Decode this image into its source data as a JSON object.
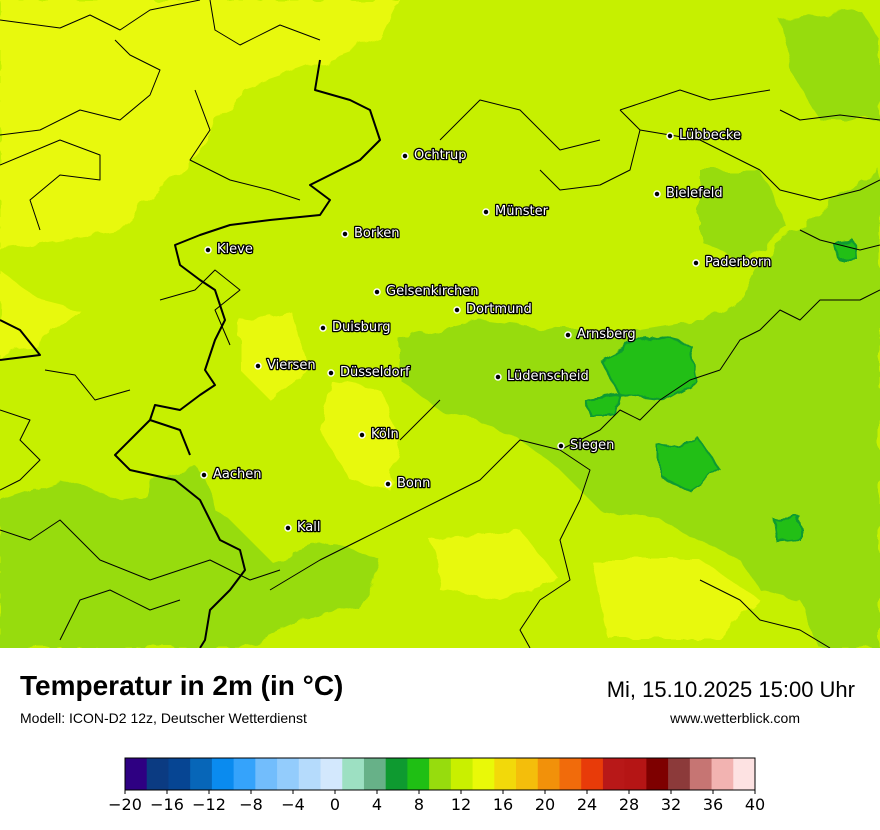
{
  "title": "Temperatur in 2m (in °C)",
  "model": "Modell: ICON-D2 12z, Deutscher Wetterdienst",
  "datetime": "Mi, 15.10.2025 15:00 Uhr",
  "website": "www.wetterblick.com",
  "cities": [
    {
      "name": "Ochtrup"
    },
    {
      "name": "Lübbecke"
    },
    {
      "name": "Bielefeld"
    },
    {
      "name": "Münster"
    },
    {
      "name": "Borken"
    },
    {
      "name": "Kleve"
    },
    {
      "name": "Paderborn"
    },
    {
      "name": "Gelsenkirchen"
    },
    {
      "name": "Dortmund"
    },
    {
      "name": "Duisburg"
    },
    {
      "name": "Arnsberg"
    },
    {
      "name": "Viersen"
    },
    {
      "name": "Düsseldorf"
    },
    {
      "name": "Lüdenscheid"
    },
    {
      "name": "Köln"
    },
    {
      "name": "Siegen"
    },
    {
      "name": "Aachen"
    },
    {
      "name": "Bonn"
    },
    {
      "name": "Kall"
    }
  ],
  "legend": {
    "ticks": [
      "−20",
      "−16",
      "−12",
      "−8",
      "−4",
      "0",
      "4",
      "8",
      "12",
      "16",
      "20",
      "24",
      "28",
      "32",
      "36",
      "40"
    ],
    "colors": [
      "#2e0082",
      "#0b3b82",
      "#064593",
      "#0766b8",
      "#0a8bef",
      "#35a3fb",
      "#72bdfc",
      "#93ccfc",
      "#b5dbfc",
      "#d3e8fd",
      "#9de0c2",
      "#67b188",
      "#0e9a30",
      "#1fbf14",
      "#97dc0d",
      "#c9f000",
      "#e9f908",
      "#f2d90a",
      "#f4be0b",
      "#f2910a",
      "#f16b0b",
      "#e83b09",
      "#b81818",
      "#b51515",
      "#7e0000",
      "#8c3a3a",
      "#c67573",
      "#f2b3b1",
      "#fde2e2"
    ]
  },
  "colors": {
    "base": "#c6f000",
    "warm": "#e8f90a",
    "mild": "#97dc0d",
    "cool": "#22bf14",
    "deep": "#0e9a30"
  }
}
